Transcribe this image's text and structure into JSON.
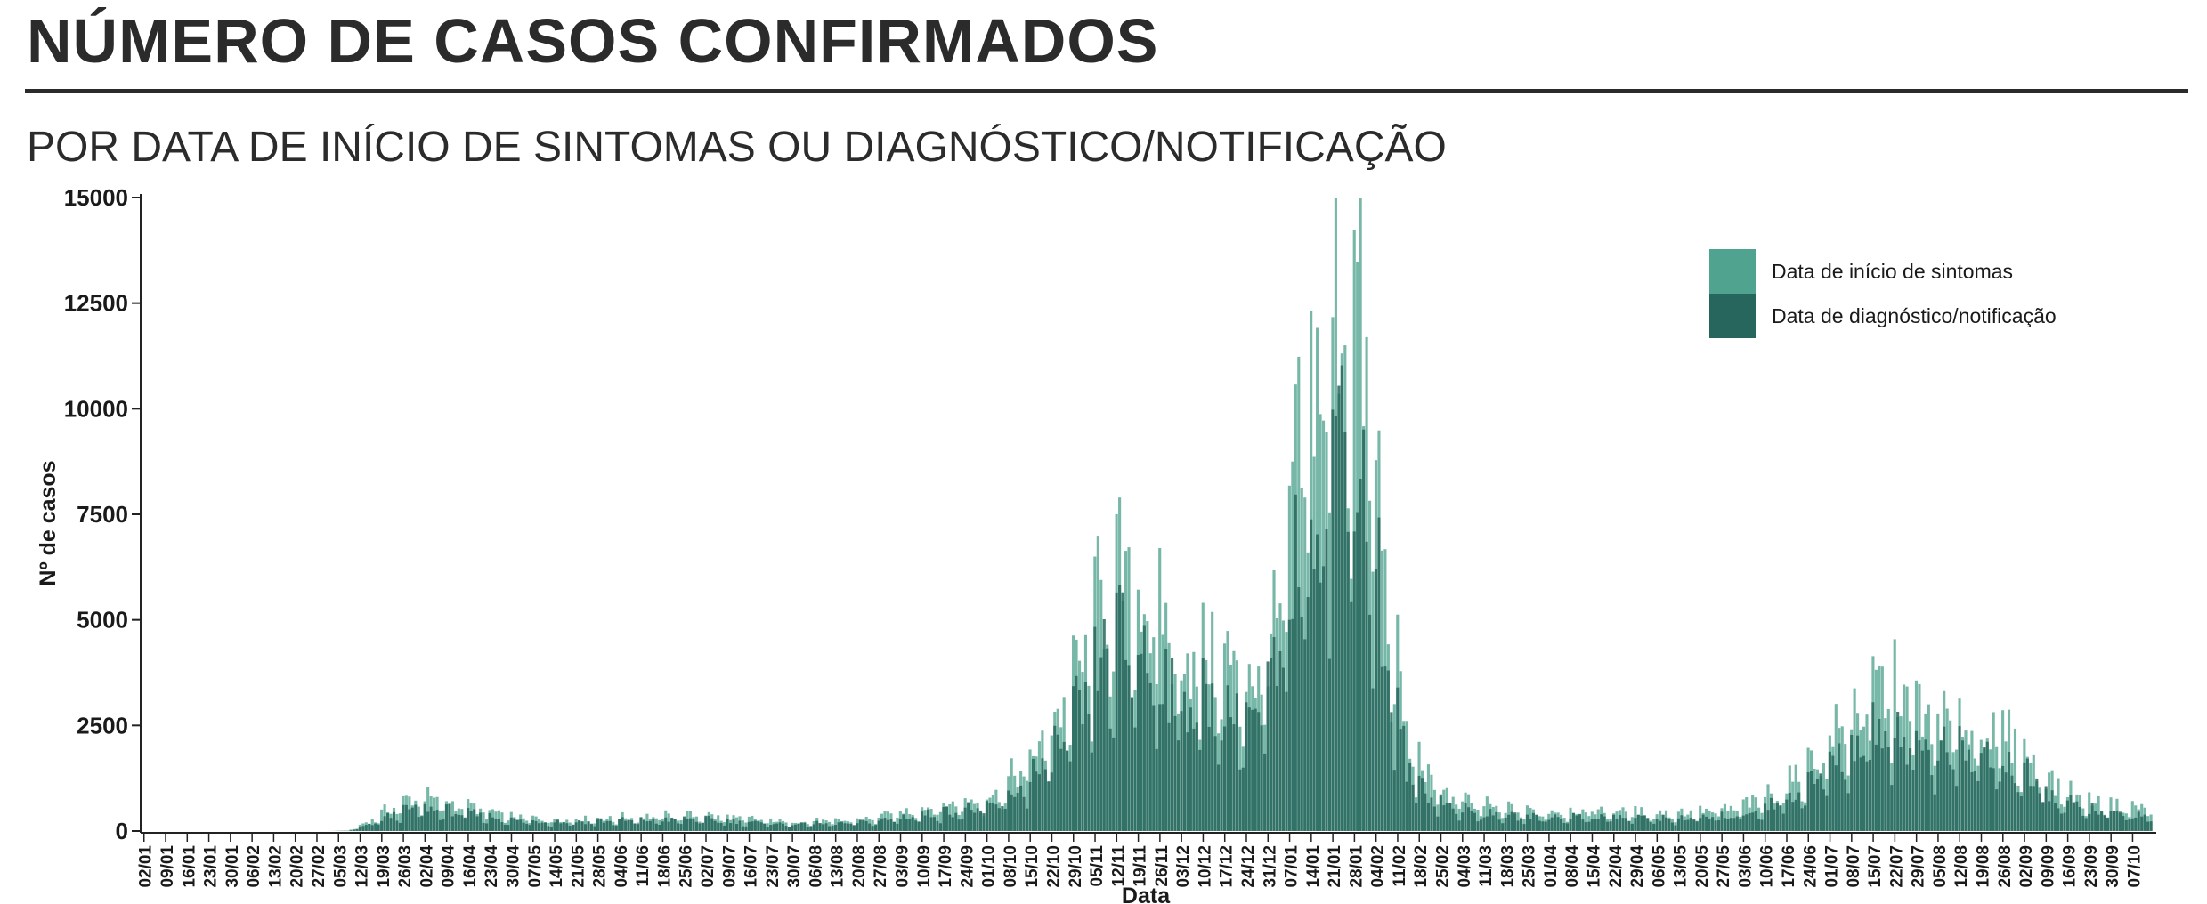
{
  "header": {
    "title": "NÚMERO DE CASOS CONFIRMADOS",
    "subtitle": "POR DATA DE INÍCIO DE SINTOMAS OU DIAGNÓSTICO/NOTIFICAÇÃO"
  },
  "chart_data": {
    "type": "bar",
    "xlabel": "Data",
    "ylabel": "Nº de casos",
    "ylim": [
      0,
      15000
    ],
    "yticks": [
      0,
      2500,
      5000,
      7500,
      10000,
      12500,
      15000
    ],
    "grid": false,
    "legend_position": "top-right",
    "stacking": "overlaid",
    "x_start": "02/01",
    "tick_labels": [
      "02/01",
      "09/01",
      "16/01",
      "23/01",
      "30/01",
      "06/02",
      "13/02",
      "20/02",
      "27/02",
      "05/03",
      "12/03",
      "19/03",
      "26/03",
      "02/04",
      "09/04",
      "16/04",
      "23/04",
      "30/04",
      "07/05",
      "14/05",
      "21/05",
      "28/05",
      "04/06",
      "11/06",
      "18/06",
      "25/06",
      "02/07",
      "09/07",
      "16/07",
      "23/07",
      "30/07",
      "06/08",
      "13/08",
      "20/08",
      "27/08",
      "03/09",
      "10/09",
      "17/09",
      "24/09",
      "01/10",
      "08/10",
      "15/10",
      "22/10",
      "29/10",
      "05/11",
      "12/11",
      "19/11",
      "26/11",
      "03/12",
      "10/12",
      "17/12",
      "24/12",
      "31/12",
      "07/01",
      "14/01",
      "21/01",
      "28/01",
      "04/02",
      "11/02",
      "18/02",
      "25/02",
      "04/03",
      "11/03",
      "18/03",
      "25/03",
      "01/04",
      "08/04",
      "15/04",
      "22/04",
      "29/04",
      "06/05",
      "13/05",
      "20/05",
      "27/05",
      "03/06",
      "10/06",
      "17/06",
      "24/06",
      "01/07",
      "08/07",
      "15/07",
      "22/07",
      "29/07",
      "05/08",
      "12/08",
      "19/08",
      "26/08",
      "02/09",
      "09/09",
      "16/09",
      "23/09",
      "30/09",
      "07/10"
    ],
    "series": [
      {
        "name": "Data de início de sintomas",
        "color": "#4fa38f",
        "weekly_values": [
          0,
          0,
          0,
          0,
          0,
          0,
          0,
          0,
          0,
          10,
          250,
          550,
          780,
          720,
          620,
          520,
          380,
          300,
          290,
          270,
          290,
          300,
          320,
          340,
          350,
          370,
          340,
          300,
          260,
          230,
          220,
          230,
          240,
          290,
          380,
          480,
          560,
          640,
          720,
          850,
          1400,
          2000,
          2900,
          4000,
          5600,
          5700,
          5300,
          4500,
          4000,
          4100,
          3700,
          3600,
          4900,
          9200,
          10900,
          12800,
          11300,
          5500,
          2000,
          1200,
          800,
          620,
          550,
          480,
          450,
          470,
          480,
          470,
          450,
          430,
          420,
          430,
          460,
          520,
          680,
          900,
          1250,
          1750,
          2450,
          2900,
          3450,
          3150,
          2600,
          2550,
          2450,
          2350,
          2100,
          1500,
          1050,
          780,
          640,
          560,
          550
        ]
      },
      {
        "name": "Data de diagnóstico/notificação",
        "color": "#27665c",
        "weekly_values": [
          0,
          0,
          0,
          0,
          0,
          0,
          0,
          0,
          0,
          5,
          150,
          380,
          520,
          500,
          440,
          380,
          280,
          230,
          220,
          210,
          220,
          230,
          240,
          250,
          260,
          280,
          250,
          220,
          190,
          170,
          160,
          170,
          180,
          210,
          270,
          340,
          400,
          460,
          520,
          600,
          1000,
          1450,
          2100,
          2900,
          4200,
          4400,
          4000,
          3400,
          2950,
          3050,
          2750,
          2650,
          3700,
          6800,
          8100,
          9600,
          8400,
          3800,
          1400,
          850,
          560,
          430,
          380,
          340,
          320,
          330,
          330,
          330,
          320,
          300,
          290,
          300,
          320,
          360,
          480,
          640,
          900,
          1250,
          1750,
          2100,
          2500,
          2300,
          1900,
          1850,
          1780,
          1700,
          1500,
          1050,
          740,
          550,
          450,
          390,
          380
        ]
      }
    ]
  }
}
